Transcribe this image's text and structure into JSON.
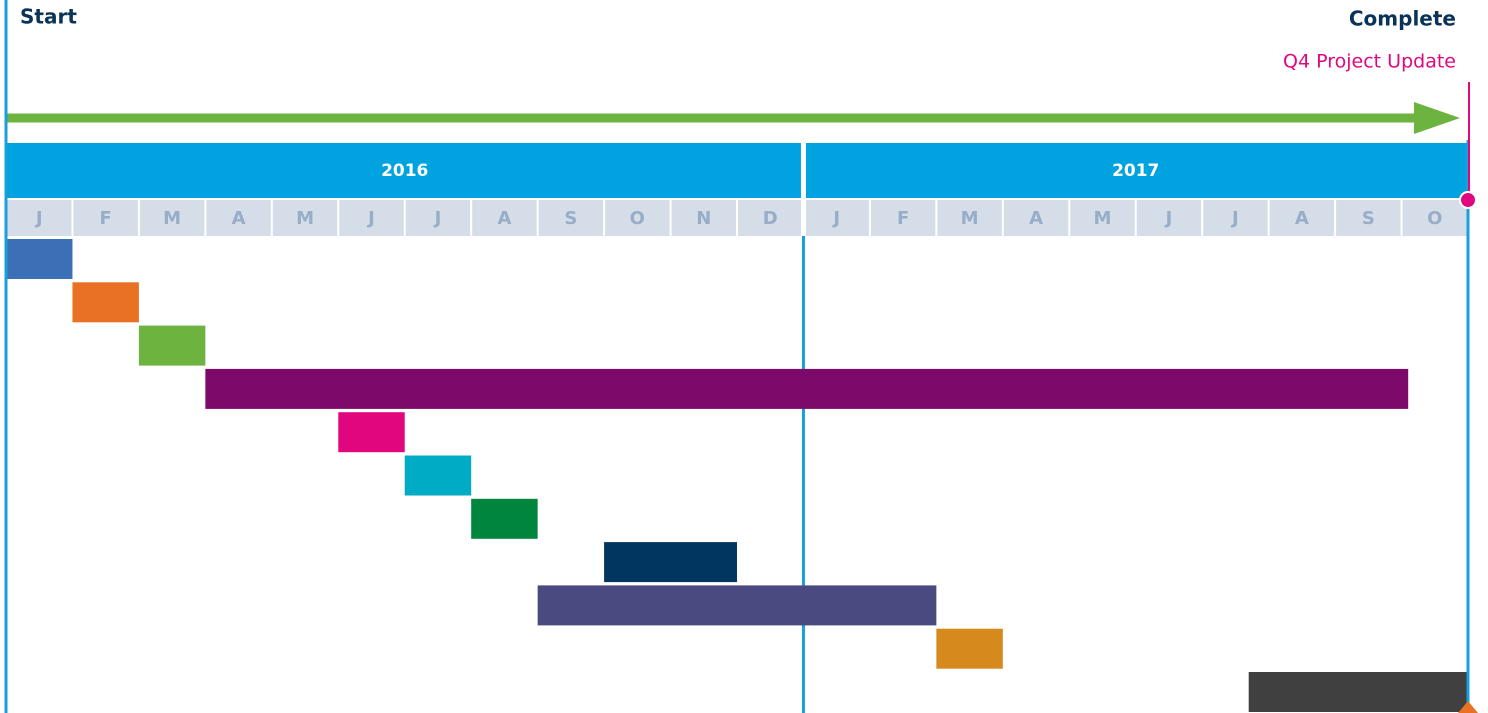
{
  "chart_data": {
    "type": "gantt",
    "start_label": "Start",
    "end_label": "Complete",
    "milestone_label": "Q4 Project Update",
    "categories": [
      "J",
      "F",
      "M",
      "A",
      "M",
      "J",
      "J",
      "A",
      "S",
      "O",
      "N",
      "D",
      "J",
      "F",
      "M",
      "A",
      "M",
      "J",
      "J",
      "A",
      "S",
      "O"
    ],
    "groups": [
      {
        "label": "2016",
        "start": 0,
        "end": 12
      },
      {
        "label": "2017",
        "start": 12,
        "end": 22
      }
    ],
    "xlim": [
      0,
      22
    ],
    "milestone": 22,
    "tasks": [
      {
        "start": 0,
        "end": 1,
        "color": "#3b70b7"
      },
      {
        "start": 1,
        "end": 2,
        "color": "#e87124"
      },
      {
        "start": 2,
        "end": 3,
        "color": "#6db33f"
      },
      {
        "start": 3,
        "end": 21.1,
        "color": "#7b0a6a"
      },
      {
        "start": 5,
        "end": 6,
        "color": "#e2067e"
      },
      {
        "start": 6,
        "end": 7,
        "color": "#00abc6"
      },
      {
        "start": 7,
        "end": 8,
        "color": "#00853e"
      },
      {
        "start": 9,
        "end": 11,
        "color": "#00365f"
      },
      {
        "start": 8,
        "end": 14,
        "color": "#4a4a80"
      },
      {
        "start": 14,
        "end": 15,
        "color": "#d68a1e"
      },
      {
        "start": 18.7,
        "end": 22,
        "color": "#404040"
      }
    ]
  }
}
